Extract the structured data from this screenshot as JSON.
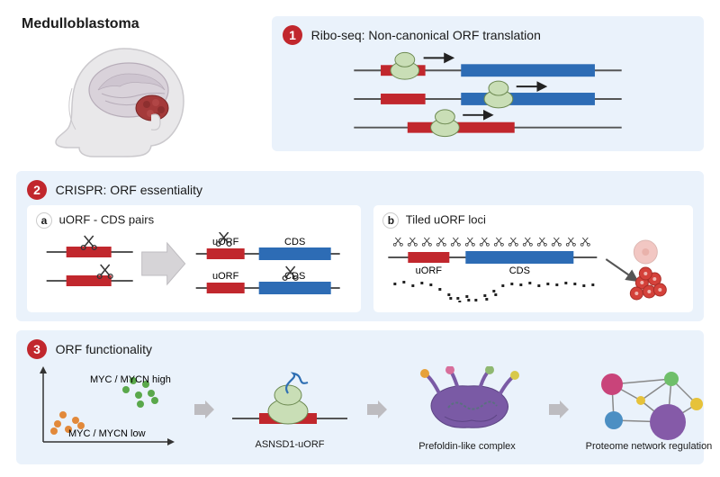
{
  "title": "Medulloblastoma",
  "badge_color": "#c1272d",
  "panel1": {
    "num": "1",
    "title": "Ribo-seq: Non-canonical ORF translation",
    "bg": "#eaf2fb",
    "red": "#c1272d",
    "blue": "#2d6cb5",
    "ribosome_fill": "#c9deb6",
    "ribosome_stroke": "#6d8a52",
    "line": "#555555"
  },
  "panel2": {
    "num": "2",
    "title": "CRISPR: ORF essentiality",
    "bg": "#eaf2fb",
    "sub_a": {
      "letter": "a",
      "title": "uORF - CDS pairs",
      "uorf_label": "uORF",
      "cds_label": "CDS"
    },
    "sub_b": {
      "letter": "b",
      "title": "Tiled uORF loci",
      "uorf_label": "uORF",
      "cds_label": "CDS"
    },
    "red": "#c1272d",
    "blue": "#2d6cb5",
    "line": "#555555",
    "scissors": "#333333",
    "cell_pale": "#f2c7c3",
    "cell_red": "#d4413a"
  },
  "panel3": {
    "num": "3",
    "title": "ORF functionality",
    "bg": "#eaf2fb",
    "scatter": {
      "high_label": "MYC / MYCN  high",
      "low_label": "MYC / MYCN low",
      "high_color": "#5aa84b",
      "low_color": "#e2893a",
      "axis_color": "#333333"
    },
    "asnsd1_label": "ASNSD1-uORF",
    "prefoldin_label": "Prefoldin-like complex",
    "network_label": "Proteome network regulation",
    "ribosome_fill": "#c9deb6",
    "ribosome_stroke": "#6d8a52",
    "peptide_color": "#2f6fb3",
    "red": "#c1272d",
    "arrow_color": "#6a6a6a",
    "prefoldin": {
      "body": "#7a5aa5",
      "orange": "#e6a13a",
      "pink": "#d86f9b",
      "green": "#8fb871",
      "yellow": "#d8c94a",
      "peptide": "#5a7080"
    },
    "network": {
      "c1": "#c9447a",
      "c2": "#6fbf6a",
      "c3": "#4c8fc3",
      "c4": "#e6c23a",
      "c5": "#855aa8",
      "edge": "#888888"
    }
  }
}
